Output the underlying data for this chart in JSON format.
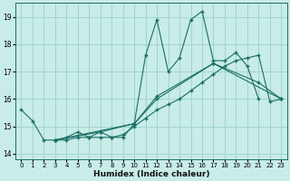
{
  "xlabel": "Humidex (Indice chaleur)",
  "bg_color": "#c8ece8",
  "grid_color": "#a0d4ce",
  "line_color": "#1a6e64",
  "xlim": [
    -0.5,
    23.5
  ],
  "ylim": [
    13.8,
    19.5
  ],
  "yticks": [
    14,
    15,
    16,
    17,
    18,
    19
  ],
  "xticks": [
    0,
    1,
    2,
    3,
    4,
    5,
    6,
    7,
    8,
    9,
    10,
    11,
    12,
    13,
    14,
    15,
    16,
    17,
    18,
    19,
    20,
    21,
    22,
    23
  ],
  "line1": {
    "x": [
      0,
      1,
      2,
      3,
      4,
      5,
      6,
      7,
      8,
      9,
      10,
      11,
      12,
      13,
      14,
      15,
      16,
      17,
      18,
      19,
      20,
      21
    ],
    "y": [
      15.6,
      15.2,
      14.5,
      14.5,
      14.6,
      14.8,
      14.6,
      14.8,
      14.6,
      14.6,
      15.1,
      17.6,
      18.9,
      17.0,
      17.5,
      18.9,
      19.2,
      17.4,
      17.4,
      17.7,
      17.2,
      16.0
    ]
  },
  "line2": {
    "x": [
      3,
      4,
      5,
      6,
      7,
      8,
      9,
      10,
      11,
      12,
      13,
      14,
      15,
      16,
      17,
      18,
      19,
      20,
      21,
      22,
      23
    ],
    "y": [
      14.5,
      14.5,
      14.6,
      14.6,
      14.6,
      14.6,
      14.7,
      15.0,
      15.3,
      15.6,
      15.8,
      16.0,
      16.3,
      16.6,
      16.9,
      17.2,
      17.4,
      17.5,
      17.6,
      15.9,
      16.0
    ]
  },
  "line3": {
    "x": [
      3,
      7,
      10,
      12,
      17,
      21,
      23
    ],
    "y": [
      14.5,
      14.8,
      15.1,
      16.1,
      17.3,
      16.6,
      16.0
    ]
  },
  "line4": {
    "x": [
      3,
      10,
      12,
      17,
      23
    ],
    "y": [
      14.5,
      15.1,
      16.0,
      17.3,
      16.0
    ]
  }
}
